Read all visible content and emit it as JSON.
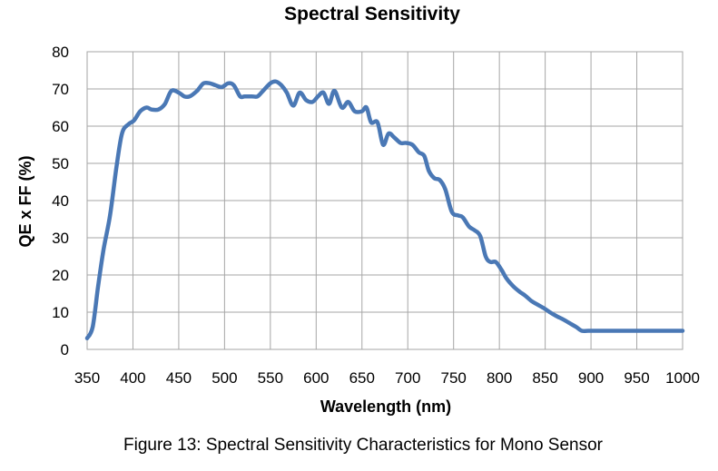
{
  "figure": {
    "caption": "Figure 13: Spectral Sensitivity Characteristics for Mono Sensor"
  },
  "chart_data": {
    "type": "line",
    "title": "Spectral Sensitivity",
    "xlabel": "Wavelength (nm)",
    "ylabel": "QE x FF (%)",
    "xlim": [
      350,
      1000
    ],
    "ylim": [
      0,
      80
    ],
    "xticks": [
      350,
      400,
      450,
      500,
      550,
      600,
      650,
      700,
      750,
      800,
      850,
      900,
      950,
      1000
    ],
    "yticks": [
      0,
      10,
      20,
      30,
      40,
      50,
      60,
      70,
      80
    ],
    "grid": true,
    "legend": "none",
    "colors": {
      "line": "#4a78b5",
      "grid": "#a6a6a6",
      "frame": "#a6a6a6"
    },
    "series": [
      {
        "x": [
          350,
          356,
          362,
          368,
          375,
          382,
          388,
          395,
          401,
          408,
          415,
          420,
          428,
          435,
          442,
          450,
          456,
          462,
          470,
          477,
          484,
          490,
          497,
          504,
          510,
          517,
          522,
          530,
          536,
          542,
          550,
          556,
          562,
          568,
          575,
          582,
          589,
          596,
          602,
          608,
          614,
          620,
          628,
          635,
          642,
          650,
          655,
          660,
          667,
          673,
          679,
          685,
          692,
          698,
          705,
          712,
          718,
          723,
          729,
          735,
          741,
          748,
          755,
          760,
          767,
          773,
          779,
          785,
          790,
          796,
          802,
          808,
          815,
          822,
          828,
          835,
          842,
          849,
          855,
          862,
          870,
          877,
          884,
          890,
          897,
          902,
          910,
          917,
          924,
          930,
          937,
          944,
          951,
          958,
          965,
          972,
          980,
          987,
          994,
          1000
        ],
        "y": [
          3,
          6,
          17,
          27,
          36,
          49,
          58,
          60.5,
          61.5,
          64,
          65,
          64.5,
          64.5,
          66,
          69.5,
          69,
          68,
          68,
          69.5,
          71.5,
          71.5,
          71,
          70.5,
          71.5,
          71,
          68,
          68,
          68,
          68,
          69.5,
          71.5,
          72,
          71,
          69,
          65.5,
          69,
          67,
          66.5,
          68,
          69,
          66,
          69.5,
          65,
          66.5,
          64,
          64,
          65,
          61,
          61,
          55,
          58,
          57,
          55.5,
          55.5,
          55,
          53,
          52,
          48,
          46,
          45.5,
          43,
          37,
          36,
          35.5,
          33,
          32,
          30.5,
          25,
          23.5,
          23.5,
          21.5,
          19,
          17,
          15.5,
          14.5,
          13,
          12,
          11,
          10,
          9,
          8,
          7,
          6,
          5,
          5,
          5,
          5,
          5,
          5,
          5,
          5,
          5,
          5,
          5,
          5,
          5,
          5,
          5,
          5,
          5
        ]
      }
    ]
  }
}
